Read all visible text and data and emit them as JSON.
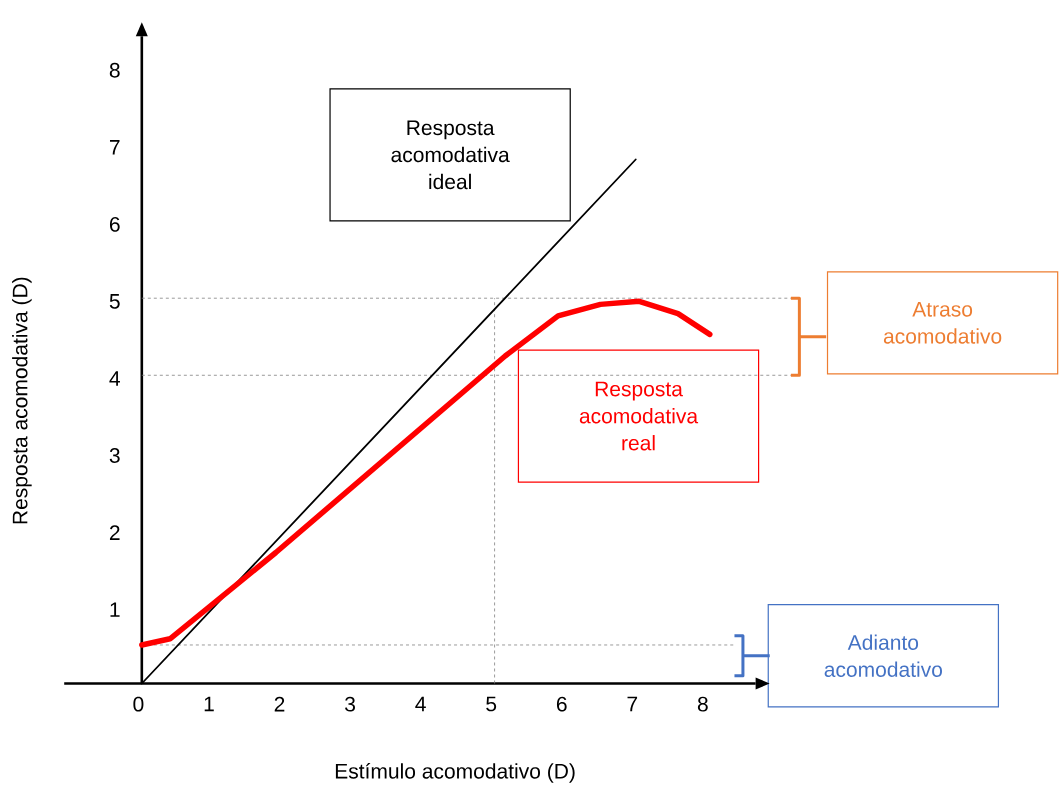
{
  "chart_data": {
    "type": "line",
    "xlabel": "Estímulo acomodativo (D)",
    "ylabel": "Resposta acomodativa (D)",
    "xlim": [
      -1.1,
      8.7
    ],
    "ylim": [
      0,
      8.4
    ],
    "xticks": [
      0,
      1,
      2,
      3,
      4,
      5,
      6,
      7,
      8
    ],
    "yticks": [
      1,
      2,
      3,
      4,
      5,
      6,
      7,
      8
    ],
    "marker": "none",
    "line_style": "solid",
    "grid": false,
    "series": [
      {
        "name": "Resposta acomodativa ideal",
        "color": "#000000",
        "x": [
          0,
          7
        ],
        "values": [
          0,
          6.8
        ]
      },
      {
        "name": "Resposta acomodativa real",
        "color": "#ff0000",
        "x": [
          0,
          0.4,
          1.9,
          5.15,
          5.9,
          6.5,
          7.05,
          7.6,
          8.05
        ],
        "values": [
          0.5,
          0.58,
          1.7,
          4.25,
          4.77,
          4.92,
          4.96,
          4.8,
          4.53
        ]
      }
    ],
    "ref_lines": [
      {
        "axis": "y",
        "value": 5,
        "color": "#808080",
        "line_style": "dashed"
      },
      {
        "axis": "y",
        "value": 4,
        "color": "#808080",
        "line_style": "dashed"
      },
      {
        "axis": "x",
        "value": 5,
        "color": "#808080",
        "line_style": "dashed"
      },
      {
        "axis": "y",
        "value": 0.5,
        "color": "#808080",
        "line_style": "dashed"
      }
    ],
    "annotations": [
      "Atraso acomodativo",
      "Adianto acomodativo"
    ]
  }
}
